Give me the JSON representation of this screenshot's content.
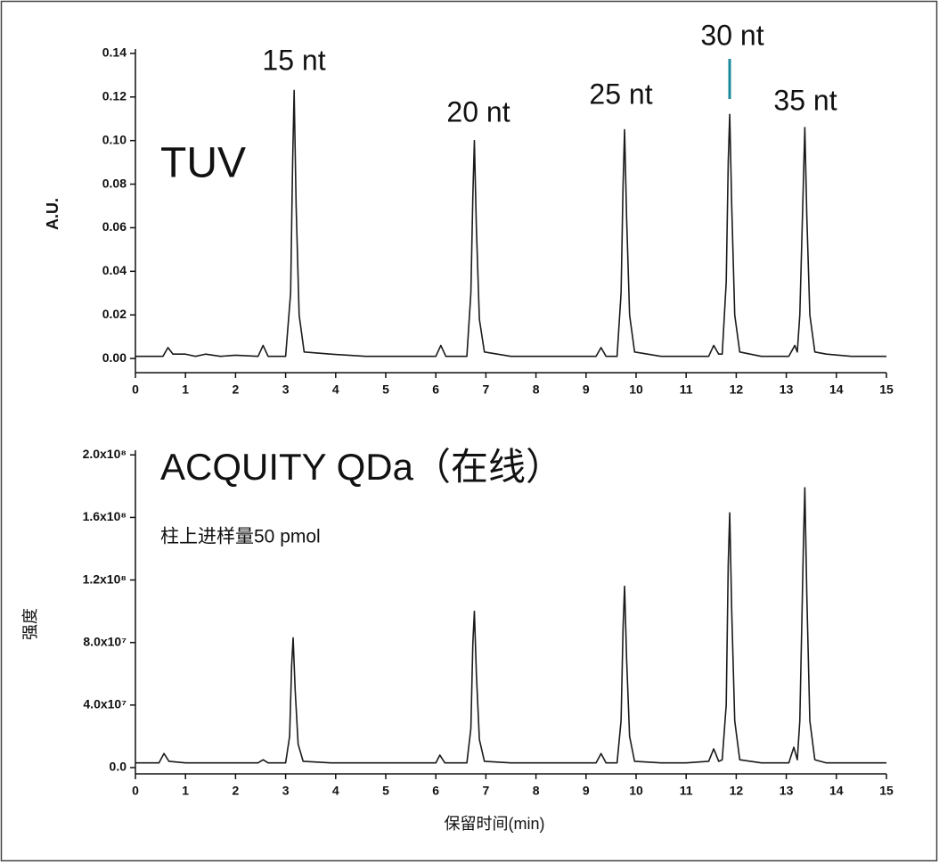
{
  "chart_data": [
    {
      "type": "line",
      "y_label": "A.U.",
      "annotations": [
        "15 nt",
        "20 nt",
        "25 nt",
        "30 nt",
        "35 nt",
        "TUV"
      ],
      "xlim": [
        0,
        15
      ],
      "xticks": [
        0,
        1,
        2,
        3,
        4,
        5,
        6,
        7,
        8,
        9,
        10,
        11,
        12,
        13,
        14,
        15
      ],
      "ylim": [
        -0.0065,
        0.142
      ],
      "yticks": [
        {
          "value": 0,
          "label": "0.00"
        },
        {
          "value": 0.02,
          "label": "0.02"
        },
        {
          "value": 0.04,
          "label": "0.04"
        },
        {
          "value": 0.06,
          "label": "0.06"
        },
        {
          "value": 0.08,
          "label": "0.08"
        },
        {
          "value": 0.1,
          "label": "0.10"
        },
        {
          "value": 0.12,
          "label": "0.12"
        },
        {
          "value": 0.14,
          "label": "0.14"
        }
      ],
      "series": [
        {
          "color": "#1a1a1a",
          "x": [
            0,
            0.55,
            0.65,
            0.75,
            1.0,
            1.2,
            1.4,
            1.7,
            2.0,
            2.45,
            2.55,
            2.65,
            3.0,
            3.1,
            3.14,
            3.17,
            3.21,
            3.27,
            3.37,
            3.9,
            4.6,
            5.4,
            6.0,
            6.1,
            6.2,
            6.62,
            6.7,
            6.74,
            6.77,
            6.81,
            6.87,
            6.97,
            7.5,
            8.2,
            9.2,
            9.3,
            9.4,
            9.62,
            9.7,
            9.74,
            9.77,
            9.81,
            9.87,
            9.97,
            10.5,
            11.0,
            11.45,
            11.55,
            11.65,
            11.72,
            11.8,
            11.84,
            11.87,
            11.91,
            11.97,
            12.07,
            12.5,
            13.05,
            13.17,
            13.22,
            13.27,
            13.34,
            13.37,
            13.41,
            13.47,
            13.57,
            13.8,
            14.3,
            15
          ],
          "values": [
            0.001,
            0.001,
            0.005,
            0.002,
            0.002,
            0.001,
            0.002,
            0.001,
            0.0015,
            0.001,
            0.006,
            0.001,
            0.001,
            0.03,
            0.09,
            0.123,
            0.07,
            0.02,
            0.003,
            0.002,
            0.001,
            0.001,
            0.001,
            0.006,
            0.001,
            0.001,
            0.03,
            0.075,
            0.1,
            0.06,
            0.018,
            0.003,
            0.001,
            0.001,
            0.001,
            0.005,
            0.001,
            0.001,
            0.03,
            0.08,
            0.105,
            0.065,
            0.02,
            0.003,
            0.001,
            0.001,
            0.001,
            0.006,
            0.002,
            0.002,
            0.035,
            0.09,
            0.112,
            0.07,
            0.02,
            0.003,
            0.001,
            0.001,
            0.006,
            0.003,
            0.02,
            0.08,
            0.106,
            0.065,
            0.02,
            0.003,
            0.002,
            0.001,
            0.001
          ]
        }
      ]
    },
    {
      "type": "line",
      "y_label": "强度",
      "x_label": "保留时间(min)",
      "annotations": [
        "ACQUITY QDa（在线）",
        "柱上进样量50 pmol"
      ],
      "xlim": [
        0,
        15
      ],
      "xticks": [
        0,
        1,
        2,
        3,
        4,
        5,
        6,
        7,
        8,
        9,
        10,
        11,
        12,
        13,
        14,
        15
      ],
      "ylim": [
        -4000000,
        203000000
      ],
      "yticks": [
        {
          "value": 0,
          "label": "0.0"
        },
        {
          "value": 40000000,
          "label": "4.0x10⁷"
        },
        {
          "value": 80000000,
          "label": "8.0x10⁷"
        },
        {
          "value": 120000000,
          "label": "1.2x10⁸"
        },
        {
          "value": 160000000,
          "label": "1.6x10⁸"
        },
        {
          "value": 200000000,
          "label": "2.0x10⁸"
        }
      ],
      "series": [
        {
          "color": "#1a1a1a",
          "x": [
            0,
            0.47,
            0.57,
            0.67,
            1.0,
            1.2,
            1.4,
            1.7,
            2.0,
            2.45,
            2.55,
            2.65,
            3.0,
            3.08,
            3.12,
            3.15,
            3.19,
            3.25,
            3.35,
            3.9,
            4.6,
            5.4,
            6.0,
            6.08,
            6.18,
            6.62,
            6.7,
            6.74,
            6.77,
            6.81,
            6.87,
            6.97,
            7.5,
            8.2,
            9.2,
            9.3,
            9.4,
            9.62,
            9.7,
            9.74,
            9.77,
            9.81,
            9.87,
            9.97,
            10.5,
            11.0,
            11.45,
            11.55,
            11.65,
            11.72,
            11.8,
            11.84,
            11.87,
            11.91,
            11.97,
            12.07,
            12.5,
            13.05,
            13.15,
            13.22,
            13.27,
            13.34,
            13.37,
            13.41,
            13.47,
            13.57,
            13.8,
            14.3,
            15
          ],
          "values": [
            3000000,
            3000000,
            9000000,
            4000000,
            3000000,
            3000000,
            3000000,
            3000000,
            3000000,
            3000000,
            5000000,
            3000000,
            3000000,
            20000000,
            65000000,
            83000000,
            50000000,
            15000000,
            4000000,
            3000000,
            3000000,
            3000000,
            3000000,
            8000000,
            3000000,
            3000000,
            25000000,
            80000000,
            100000000,
            60000000,
            18000000,
            4000000,
            3000000,
            3000000,
            3000000,
            9000000,
            3000000,
            3000000,
            30000000,
            90000000,
            116000000,
            70000000,
            20000000,
            4000000,
            3000000,
            3000000,
            4000000,
            12000000,
            4000000,
            5000000,
            40000000,
            130000000,
            163000000,
            100000000,
            30000000,
            5000000,
            3000000,
            3000000,
            13000000,
            5000000,
            30000000,
            140000000,
            179000000,
            110000000,
            30000000,
            5000000,
            3000000,
            3000000,
            3000000
          ]
        }
      ]
    }
  ]
}
